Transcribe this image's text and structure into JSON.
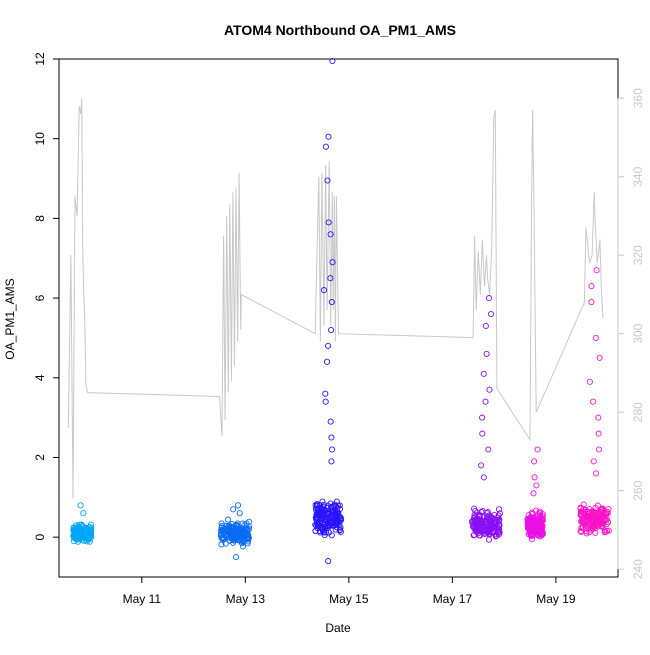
{
  "chart_data": {
    "type": "scatter",
    "title": "ATOM4 Northbound OA_PM1_AMS",
    "xlabel": "Date",
    "ylabel": "OA_PM1_AMS",
    "x_ticks": [
      {
        "day": 11,
        "label": "May 11"
      },
      {
        "day": 13,
        "label": "May 13"
      },
      {
        "day": 15,
        "label": "May 15"
      },
      {
        "day": 17,
        "label": "May 17"
      },
      {
        "day": 19,
        "label": "May 19"
      }
    ],
    "xlim_days": [
      9.4,
      20.2
    ],
    "ylim": [
      -1,
      12
    ],
    "y_ticks": [
      0,
      2,
      4,
      6,
      8,
      10,
      12
    ],
    "y2_ticks": [
      240,
      260,
      280,
      300,
      320,
      340,
      360
    ],
    "y2lim": [
      238,
      370
    ],
    "y2_color": "#c8c8c8",
    "grid": false,
    "series": [
      {
        "color": "#00a7f4",
        "center": 9.85,
        "width": 0.35,
        "base": 0.1,
        "spread": 0.2,
        "peaks": [
          0.8,
          0.6
        ]
      },
      {
        "color": "#0a6cf4",
        "center": 12.8,
        "width": 0.55,
        "base": 0.1,
        "spread": 0.25,
        "peaks": [
          0.8,
          0.7,
          0.6,
          -0.5
        ]
      },
      {
        "color": "#2a14ff",
        "center": 14.6,
        "width": 0.5,
        "base": 0.45,
        "spread": 0.45,
        "peaks": [
          11.95,
          10.05,
          9.8,
          8.95,
          7.9,
          7.6,
          6.9,
          6.5,
          6.2,
          5.9,
          5.2,
          4.8,
          4.4,
          3.6,
          3.4,
          2.9,
          2.5,
          2.2,
          1.9,
          -0.6
        ]
      },
      {
        "color": "#8a10f4",
        "center": 17.65,
        "width": 0.55,
        "base": 0.3,
        "spread": 0.35,
        "peaks": [
          6.0,
          5.6,
          5.3,
          4.6,
          4.1,
          3.7,
          3.4,
          3.0,
          2.6,
          2.2,
          1.8,
          1.5
        ]
      },
      {
        "color": "#ea10e4",
        "center": 18.6,
        "width": 0.3,
        "base": 0.3,
        "spread": 0.3,
        "peaks": [
          2.2,
          1.9,
          1.5,
          1.3,
          1.1
        ]
      },
      {
        "color": "#ff14c8",
        "center": 19.75,
        "width": 0.55,
        "base": 0.45,
        "spread": 0.35,
        "peaks": [
          6.7,
          6.3,
          5.9,
          5.0,
          4.5,
          3.9,
          3.4,
          3.0,
          2.6,
          2.2,
          1.9,
          1.6
        ]
      }
    ],
    "secondary_line": {
      "color": "#c8c8c8",
      "points": [
        [
          9.58,
          276
        ],
        [
          9.63,
          320
        ],
        [
          9.67,
          258
        ],
        [
          9.71,
          335
        ],
        [
          9.75,
          330
        ],
        [
          9.79,
          358
        ],
        [
          9.82,
          356
        ],
        [
          9.84,
          360
        ],
        [
          9.86,
          320
        ],
        [
          9.88,
          310
        ],
        [
          9.9,
          302
        ],
        [
          9.92,
          287
        ],
        [
          9.95,
          285
        ],
        [
          12.5,
          284
        ],
        [
          12.55,
          274
        ],
        [
          12.58,
          325
        ],
        [
          12.61,
          278
        ],
        [
          12.64,
          330
        ],
        [
          12.67,
          285
        ],
        [
          12.7,
          333
        ],
        [
          12.73,
          288
        ],
        [
          12.76,
          336
        ],
        [
          12.79,
          292
        ],
        [
          12.82,
          337
        ],
        [
          12.85,
          298
        ],
        [
          12.88,
          341
        ],
        [
          12.91,
          301
        ],
        [
          12.92,
          310
        ],
        [
          14.35,
          300
        ],
        [
          14.42,
          340
        ],
        [
          14.45,
          298
        ],
        [
          14.48,
          341
        ],
        [
          14.52,
          302
        ],
        [
          14.55,
          343
        ],
        [
          14.58,
          306
        ],
        [
          14.62,
          344
        ],
        [
          14.65,
          302
        ],
        [
          14.68,
          336
        ],
        [
          14.7,
          306
        ],
        [
          14.72,
          335
        ],
        [
          14.74,
          298
        ],
        [
          14.76,
          335
        ],
        [
          14.8,
          300
        ],
        [
          17.4,
          299
        ],
        [
          17.43,
          325
        ],
        [
          17.46,
          306
        ],
        [
          17.5,
          321
        ],
        [
          17.54,
          310
        ],
        [
          17.58,
          324
        ],
        [
          17.62,
          312
        ],
        [
          17.66,
          320
        ],
        [
          17.68,
          314
        ],
        [
          17.72,
          310
        ],
        [
          17.76,
          322
        ],
        [
          17.8,
          355
        ],
        [
          17.83,
          357
        ],
        [
          17.86,
          286
        ],
        [
          18.5,
          273
        ],
        [
          18.53,
          335
        ],
        [
          18.55,
          357
        ],
        [
          18.58,
          330
        ],
        [
          18.62,
          280
        ],
        [
          19.55,
          308
        ],
        [
          19.58,
          327
        ],
        [
          19.62,
          322
        ],
        [
          19.65,
          318
        ],
        [
          19.7,
          320
        ],
        [
          19.74,
          336
        ],
        [
          19.76,
          328
        ],
        [
          19.8,
          318
        ],
        [
          19.85,
          324
        ],
        [
          19.88,
          311
        ],
        [
          19.91,
          304
        ]
      ]
    }
  }
}
